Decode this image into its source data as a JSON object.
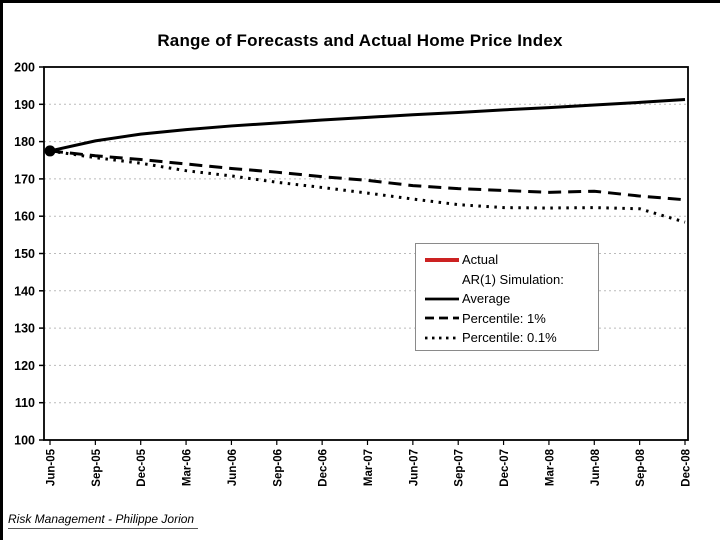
{
  "slide": {
    "title": "Range of Forecasts and Actual Home Price Index",
    "footer": "Risk Management - Philippe Jorion"
  },
  "colors": {
    "actual_red": "#cc2222",
    "series_black": "#000000",
    "gridline_gray": "#bbbbbb",
    "legend_border_gray": "#8a8a8a"
  },
  "chart_data": {
    "type": "line",
    "title": "Range of Forecasts and Actual Home Price Index",
    "xlabel": "",
    "ylabel": "",
    "ylim": [
      100,
      200
    ],
    "ytick_step": 10,
    "grid": true,
    "legend_position": "inside-center-right",
    "categories": [
      "Jun-05",
      "Sep-05",
      "Dec-05",
      "Mar-06",
      "Jun-06",
      "Sep-06",
      "Dec-06",
      "Mar-07",
      "Jun-07",
      "Sep-07",
      "Dec-07",
      "Mar-08",
      "Jun-08",
      "Sep-08",
      "Dec-08"
    ],
    "series": [
      {
        "name": "Actual",
        "style": "solid",
        "color": "#cc2222",
        "width": 4,
        "marker": "dot",
        "marker_color": "#000000",
        "values": [
          177.5,
          null,
          null,
          null,
          null,
          null,
          null,
          null,
          null,
          null,
          null,
          null,
          null,
          null,
          null
        ]
      },
      {
        "name": "AR(1) Simulation:",
        "style": "none",
        "color": "#000000",
        "width": 0,
        "values": []
      },
      {
        "name": "Average",
        "style": "solid",
        "color": "#000000",
        "width": 3,
        "values": [
          177.5,
          180.2,
          182.0,
          183.2,
          184.2,
          185.0,
          185.8,
          186.5,
          187.2,
          187.8,
          188.5,
          189.1,
          189.8,
          190.5,
          191.3
        ]
      },
      {
        "name": "Percentile: 1%",
        "style": "dashed",
        "color": "#000000",
        "width": 3,
        "values": [
          177.5,
          176.2,
          175.2,
          174.0,
          172.8,
          171.8,
          170.6,
          169.6,
          168.2,
          167.4,
          166.9,
          166.4,
          166.7,
          165.4,
          164.4
        ]
      },
      {
        "name": "Percentile: 0.1%",
        "style": "dotted",
        "color": "#000000",
        "width": 3,
        "values": [
          177.5,
          175.7,
          174.2,
          172.2,
          170.8,
          169.1,
          167.7,
          166.2,
          164.6,
          163.1,
          162.3,
          162.2,
          162.3,
          162.0,
          158.4
        ]
      }
    ]
  }
}
